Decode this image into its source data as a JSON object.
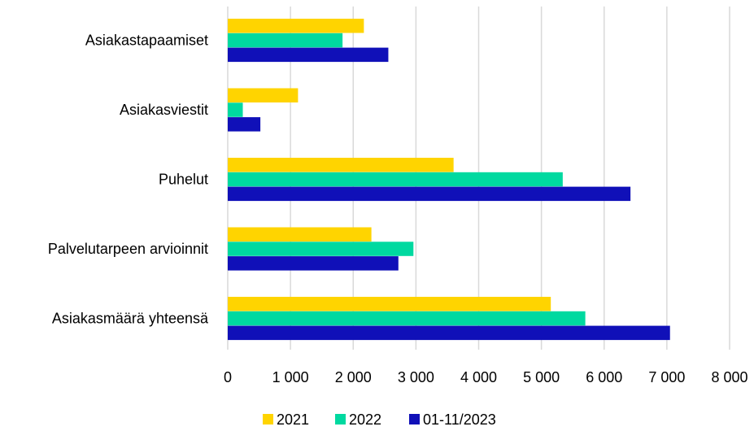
{
  "chart_data": {
    "type": "bar",
    "orientation": "horizontal",
    "title": "",
    "xlabel": "",
    "ylabel": "",
    "categories": [
      "Asiakastapaamiset",
      "Asiakasviestit",
      "Puhelut",
      "Palvelutarpeen arvioinnit",
      "Asiakasmäärä yhteensä"
    ],
    "series": [
      {
        "name": "2021",
        "color": "#ffd400",
        "values": [
          2170,
          1120,
          3600,
          2290,
          5150
        ]
      },
      {
        "name": "2022",
        "color": "#00d9a0",
        "values": [
          1830,
          240,
          5340,
          2960,
          5700
        ]
      },
      {
        "name": "01-11/2023",
        "color": "#1010b8",
        "values": [
          2560,
          520,
          6420,
          2720,
          7050
        ]
      }
    ],
    "xlim": [
      0,
      8000
    ],
    "xticks": [
      0,
      1000,
      2000,
      3000,
      4000,
      5000,
      6000,
      7000,
      8000
    ],
    "xtick_labels": [
      "0",
      "1 000",
      "2 000",
      "3 000",
      "4 000",
      "5 000",
      "6 000",
      "7 000",
      "8 000"
    ],
    "grid": "vertical",
    "legend_position": "bottom"
  }
}
